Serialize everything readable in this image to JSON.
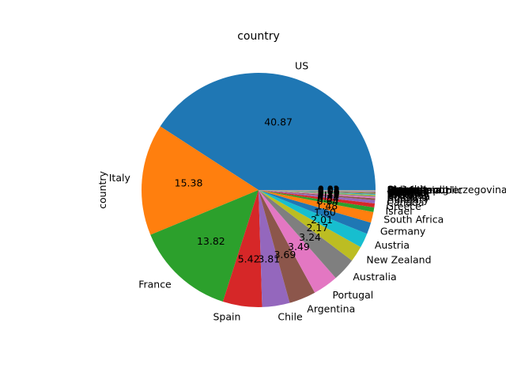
{
  "chart_data": {
    "type": "pie",
    "title": "country",
    "ylabel": "country",
    "start_angle_deg": 0,
    "direction": "counterclockwise",
    "autopct_format": "%.2f",
    "slices": [
      {
        "label": "US",
        "value": 41.34,
        "color": "#1f77b4"
      },
      {
        "label": "Italy",
        "value": 15.56,
        "color": "#ff7f0e"
      },
      {
        "label": "France",
        "value": 13.98,
        "color": "#2ca02c"
      },
      {
        "label": "Spain",
        "value": 5.48,
        "color": "#d62728"
      },
      {
        "label": "Chile",
        "value": 3.85,
        "color": "#9467bd"
      },
      {
        "label": "Argentina",
        "value": 3.73,
        "color": "#8c564b"
      },
      {
        "label": "Portugal",
        "value": 3.53,
        "color": "#e377c2"
      },
      {
        "label": "Australia",
        "value": 3.28,
        "color": "#7f7f7f"
      },
      {
        "label": "New Zealand",
        "value": 2.2,
        "color": "#bcbd22"
      },
      {
        "label": "Austria",
        "value": 2.03,
        "color": "#17becf"
      },
      {
        "label": "Germany",
        "value": 1.62,
        "color": "#1f77b4"
      },
      {
        "label": "South Africa",
        "value": 1.5,
        "color": "#ff7f0e"
      },
      {
        "label": "Israel",
        "value": 0.65,
        "color": "#2ca02c"
      },
      {
        "label": "Greece",
        "value": 0.55,
        "color": "#d62728"
      },
      {
        "label": "Canada",
        "value": 0.45,
        "color": "#9467bd"
      },
      {
        "label": "Hungary",
        "value": 0.25,
        "color": "#8c564b"
      },
      {
        "label": "Bulgaria",
        "value": 0.2,
        "color": "#e377c2"
      },
      {
        "label": "Romania",
        "value": 0.15,
        "color": "#7f7f7f"
      },
      {
        "label": "Uruguay",
        "value": 0.12,
        "color": "#bcbd22"
      },
      {
        "label": "Turkey",
        "value": 0.1,
        "color": "#17becf"
      },
      {
        "label": "Slovenia",
        "value": 0.08,
        "color": "#1f77b4"
      },
      {
        "label": "Georgia",
        "value": 0.07,
        "color": "#ff7f0e"
      },
      {
        "label": "England",
        "value": 0.06,
        "color": "#2ca02c"
      },
      {
        "label": "Croatia",
        "value": 0.05,
        "color": "#d62728"
      },
      {
        "label": "Mexico",
        "value": 0.05,
        "color": "#9467bd"
      },
      {
        "label": "Moldova",
        "value": 0.04,
        "color": "#8c564b"
      },
      {
        "label": "Brazil",
        "value": 0.04,
        "color": "#e377c2"
      },
      {
        "label": "Lebanon",
        "value": 0.03,
        "color": "#7f7f7f"
      },
      {
        "label": "Morocco",
        "value": 0.02,
        "color": "#bcbd22"
      },
      {
        "label": "Peru",
        "value": 0.02,
        "color": "#17becf"
      },
      {
        "label": "Ukraine",
        "value": 0.02,
        "color": "#1f77b4"
      },
      {
        "label": "Serbia",
        "value": 0.01,
        "color": "#ff7f0e"
      },
      {
        "label": "Czech Republic",
        "value": 0.01,
        "color": "#2ca02c"
      },
      {
        "label": "Macedonia",
        "value": 0.01,
        "color": "#d62728"
      },
      {
        "label": "Cyprus",
        "value": 0.01,
        "color": "#9467bd"
      },
      {
        "label": "India",
        "value": 0.01,
        "color": "#8c564b"
      },
      {
        "label": "Switzerland",
        "value": 0.01,
        "color": "#e377c2"
      },
      {
        "label": "Luxembourg",
        "value": 0.01,
        "color": "#7f7f7f"
      },
      {
        "label": "Bosnia and Herzegovina",
        "value": 0.01,
        "color": "#bcbd22"
      },
      {
        "label": "Armenia",
        "value": 0.01,
        "color": "#17becf"
      },
      {
        "label": "Slovakia",
        "value": 0.01,
        "color": "#1f77b4"
      }
    ]
  }
}
